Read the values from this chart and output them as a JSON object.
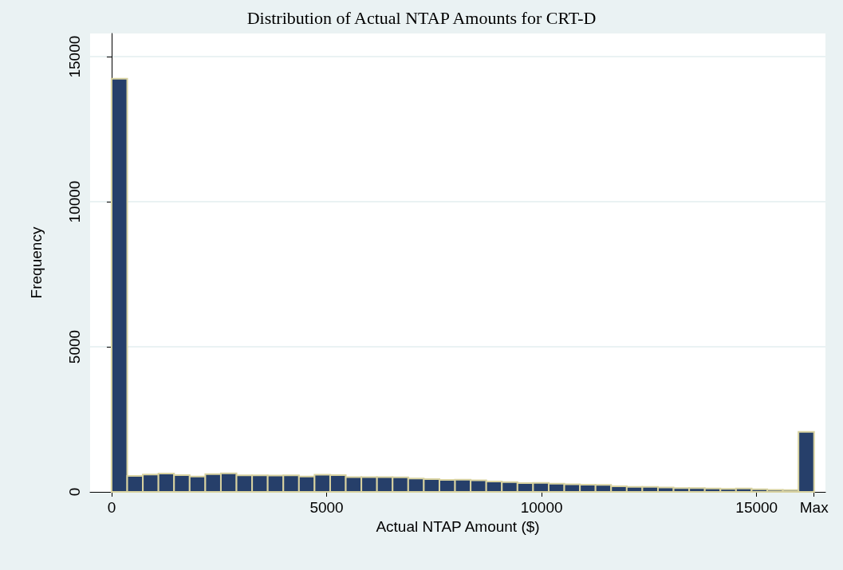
{
  "chart_data": {
    "type": "histogram",
    "title": "Distribution of Actual NTAP Amounts for CRT-D",
    "xlabel": "Actual NTAP Amount ($)",
    "ylabel": "Frequency",
    "color": "#263f6a",
    "bins": [
      0,
      363,
      726,
      1089,
      1452,
      1815,
      2178,
      2541,
      2904,
      3267,
      3630,
      3993,
      4356,
      4719,
      5082,
      5445,
      5808,
      6171,
      6534,
      6897,
      7260,
      7623,
      7986,
      8349,
      8712,
      9075,
      9438,
      9801,
      10164,
      10527,
      10890,
      11253,
      11616,
      11979,
      12342,
      12705,
      13068,
      13431,
      13794,
      14157,
      14520,
      14883,
      15246,
      15609,
      15972,
      16335
    ],
    "values": [
      14240,
      550,
      600,
      630,
      580,
      530,
      610,
      640,
      570,
      570,
      560,
      570,
      530,
      590,
      580,
      510,
      510,
      510,
      500,
      460,
      440,
      410,
      420,
      400,
      360,
      340,
      300,
      310,
      280,
      260,
      250,
      240,
      190,
      170,
      170,
      150,
      130,
      130,
      120,
      100,
      120,
      90,
      70,
      60,
      2070
    ],
    "xlim": [
      -500,
      16600
    ],
    "xticks": [
      0,
      5000,
      10000,
      15000,
      {
        "value": 16335,
        "label": "Max"
      }
    ],
    "ylim": [
      0,
      15800
    ],
    "yticks": [
      0,
      5000,
      10000,
      15000
    ],
    "grid": "y"
  }
}
